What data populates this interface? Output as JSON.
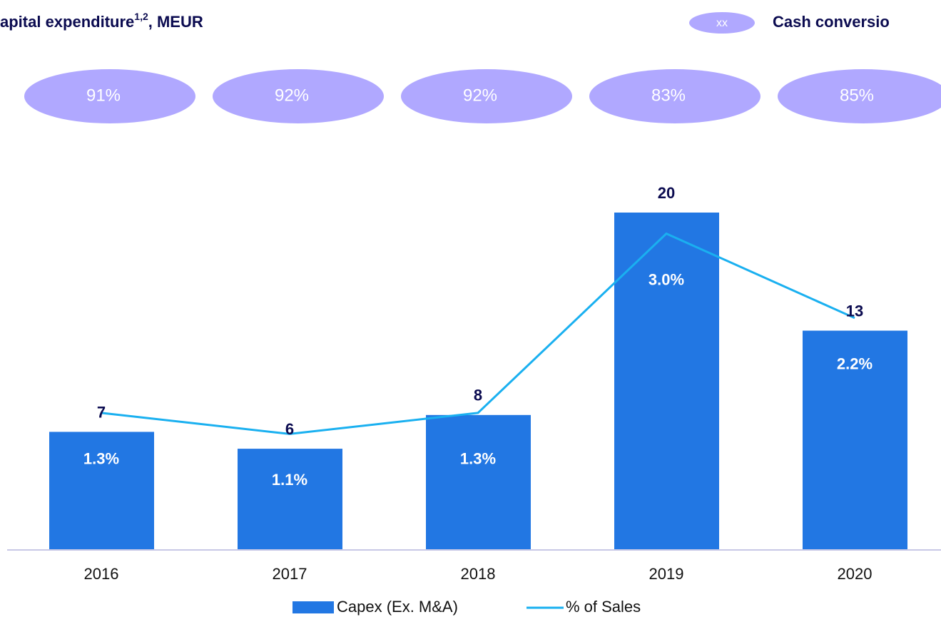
{
  "chart_data": {
    "type": "bar",
    "title": "apital expenditure",
    "title_superscript": "1,2",
    "title_suffix": ", MEUR",
    "categories": [
      "2016",
      "2017",
      "2018",
      "2019",
      "2020"
    ],
    "ylim": [
      0,
      20
    ],
    "y2lim": [
      0,
      3.2
    ],
    "series": [
      {
        "name": "Capex (Ex. M&A)",
        "type": "bar",
        "color": "#2277e3",
        "values": [
          7,
          6,
          8,
          20,
          13
        ]
      },
      {
        "name": "% of Sales",
        "type": "line",
        "axis": "y2",
        "color": "#1ab0f0",
        "values": [
          1.3,
          1.1,
          1.3,
          3.0,
          2.2
        ],
        "value_labels": [
          "1.3%",
          "1.1%",
          "1.3%",
          "3.0%",
          "2.2%"
        ]
      },
      {
        "name": "Cash conversio",
        "type": "bubble",
        "color": "#b0a8ff",
        "legend_badge": "xx",
        "values": [
          91,
          92,
          92,
          83,
          85
        ],
        "value_labels": [
          "91%",
          "92%",
          "92%",
          "83%",
          "85%"
        ]
      }
    ]
  }
}
